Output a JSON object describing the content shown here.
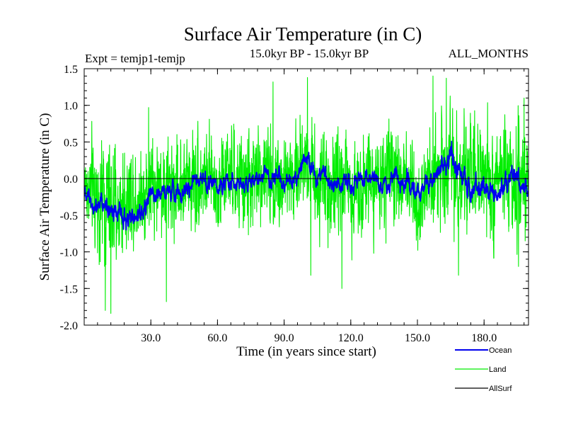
{
  "chart_data": {
    "type": "line",
    "title": "Surface Air Temperature (in C)",
    "expt_label": "Expt = temjp1-temjp",
    "period_label": "15.0kyr BP - 15.0kyr BP",
    "months_label": "ALL_MONTHS",
    "xlabel": "Time (in years since start)",
    "ylabel": "Surface Air Temperature (in C)",
    "xlim": [
      0,
      200
    ],
    "ylim": [
      -2.0,
      1.5
    ],
    "x_ticks": [
      30,
      60,
      90,
      120,
      150,
      180
    ],
    "x_tick_labels": [
      "30.0",
      "60.0",
      "90.0",
      "120.0",
      "150.0",
      "180.0"
    ],
    "y_ticks": [
      -2.0,
      -1.5,
      -1.0,
      -0.5,
      0.0,
      0.5,
      1.0,
      1.5
    ],
    "y_tick_labels": [
      "-2.0",
      "-1.5",
      "-1.0",
      "-0.5",
      "0.0",
      "0.5",
      "1.0",
      "1.5"
    ],
    "legend_position": "bottom-right",
    "series": [
      {
        "name": "Land",
        "color": "#00ee00",
        "samples_per_year": 12,
        "base": [
          -0.1,
          -0.25,
          -0.3,
          -0.45,
          -0.2,
          -0.25,
          -0.1,
          -0.1,
          -0.15,
          -0.05,
          0.05,
          0.0,
          -0.1,
          0.05,
          -0.1,
          -0.05,
          0.1,
          0.0,
          0.0,
          0.0,
          0.35,
          0.0,
          -0.05,
          -0.05,
          -0.15,
          0.0,
          0.0,
          -0.1,
          0.05,
          0.05,
          -0.25,
          -0.15,
          0.2,
          0.25,
          -0.1,
          0.0,
          0.0,
          -0.15,
          -0.05,
          0.05,
          -0.1
        ],
        "amplitude": [
          0.6,
          0.9,
          0.9,
          0.85,
          0.8,
          0.7,
          0.75,
          0.7,
          0.75,
          0.7,
          0.75,
          0.7,
          0.75,
          0.7,
          0.75,
          0.75,
          0.7,
          0.75,
          0.8,
          0.75,
          0.7,
          0.75,
          0.85,
          0.8,
          0.75,
          0.8,
          0.7,
          0.7,
          0.75,
          0.8,
          0.75,
          0.75,
          0.9,
          0.9,
          0.75,
          0.85,
          0.8,
          0.85,
          0.8,
          0.9,
          0.75
        ],
        "notable_points": [
          {
            "x": 9.5,
            "y": -1.8
          },
          {
            "x": 12.0,
            "y": -1.84
          },
          {
            "x": 29.0,
            "y": 0.97
          },
          {
            "x": 37.0,
            "y": -1.68
          },
          {
            "x": 85.0,
            "y": 1.32
          },
          {
            "x": 100.5,
            "y": 1.38
          },
          {
            "x": 102.0,
            "y": -1.32
          },
          {
            "x": 116.0,
            "y": -1.5
          },
          {
            "x": 157.0,
            "y": 1.4
          },
          {
            "x": 163.0,
            "y": 1.37
          },
          {
            "x": 168.5,
            "y": -1.32
          },
          {
            "x": 195.5,
            "y": -1.2
          },
          {
            "x": 198.0,
            "y": 1.1
          }
        ]
      },
      {
        "name": "Ocean",
        "color": "#0000ee",
        "samples_per_year": 12,
        "base": [
          -0.15,
          -0.3,
          -0.3,
          -0.55,
          -0.6,
          -0.5,
          -0.2,
          -0.15,
          -0.2,
          -0.15,
          -0.05,
          -0.05,
          -0.1,
          0.0,
          -0.1,
          -0.05,
          0.05,
          0.0,
          -0.05,
          -0.05,
          0.3,
          0.05,
          -0.05,
          -0.05,
          -0.1,
          0.0,
          0.0,
          -0.1,
          0.0,
          0.0,
          -0.2,
          -0.1,
          0.15,
          0.25,
          0.0,
          -0.15,
          -0.1,
          -0.25,
          -0.05,
          0.05,
          -0.2
        ],
        "amplitude": [
          0.12,
          0.15,
          0.15,
          0.15,
          0.15,
          0.15,
          0.12,
          0.12,
          0.12,
          0.12,
          0.12,
          0.12,
          0.12,
          0.12,
          0.12,
          0.12,
          0.12,
          0.12,
          0.12,
          0.12,
          0.15,
          0.12,
          0.12,
          0.12,
          0.12,
          0.12,
          0.12,
          0.12,
          0.12,
          0.15,
          0.15,
          0.12,
          0.15,
          0.18,
          0.15,
          0.15,
          0.15,
          0.15,
          0.15,
          0.18,
          0.15
        ]
      },
      {
        "name": "AllSurf",
        "color": "#000000",
        "samples_per_year": 12,
        "base": [
          0.0,
          0.0
        ],
        "amplitude": [
          0.0,
          0.0
        ]
      }
    ]
  }
}
